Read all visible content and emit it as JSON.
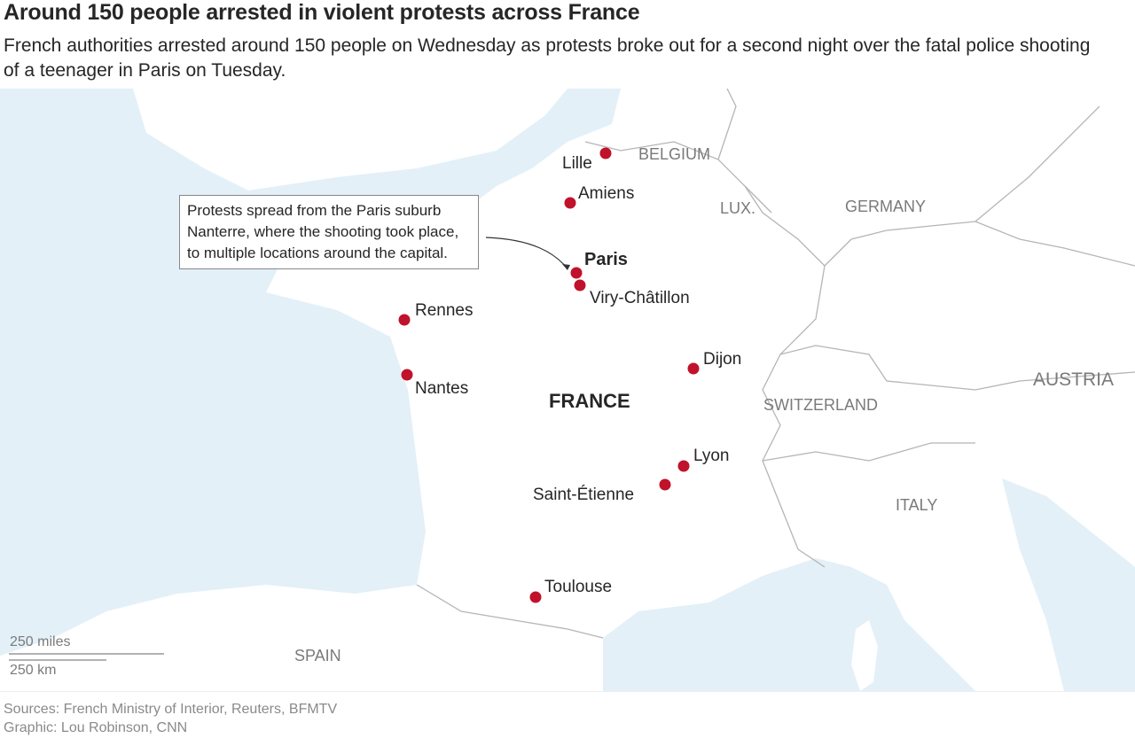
{
  "header": {
    "title": "Around 150 people arrested in violent protests across France",
    "subtitle": "French authorities arrested around 150 people on Wednesday as protests broke out for a second night over the fatal police shooting of a teenager in Paris on Tuesday."
  },
  "map": {
    "colors": {
      "sea": "#e3f0f8",
      "land": "#ffffff",
      "dot": "#c0122a",
      "border": "#b5b5b5"
    },
    "countries": [
      "BELGIUM",
      "LUX.",
      "GERMANY",
      "FRANCE",
      "SWITZERLAND",
      "AUSTRIA",
      "ITALY",
      "SPAIN"
    ],
    "cities": [
      {
        "name": "Lille"
      },
      {
        "name": "Amiens"
      },
      {
        "name": "Paris"
      },
      {
        "name": "Viry-Châtillon"
      },
      {
        "name": "Rennes"
      },
      {
        "name": "Nantes"
      },
      {
        "name": "Dijon"
      },
      {
        "name": "Lyon"
      },
      {
        "name": "Saint-Étienne"
      },
      {
        "name": "Toulouse"
      }
    ],
    "annotation": "Protests spread from the Paris suburb Nanterre, where the shooting took place, to multiple locations around the capital.",
    "scale": {
      "miles": "250 miles",
      "km": "250 km"
    }
  },
  "footer": {
    "sources": "Sources: French Ministry of Interior, Reuters, BFMTV",
    "credit": "Graphic: Lou Robinson, CNN"
  }
}
